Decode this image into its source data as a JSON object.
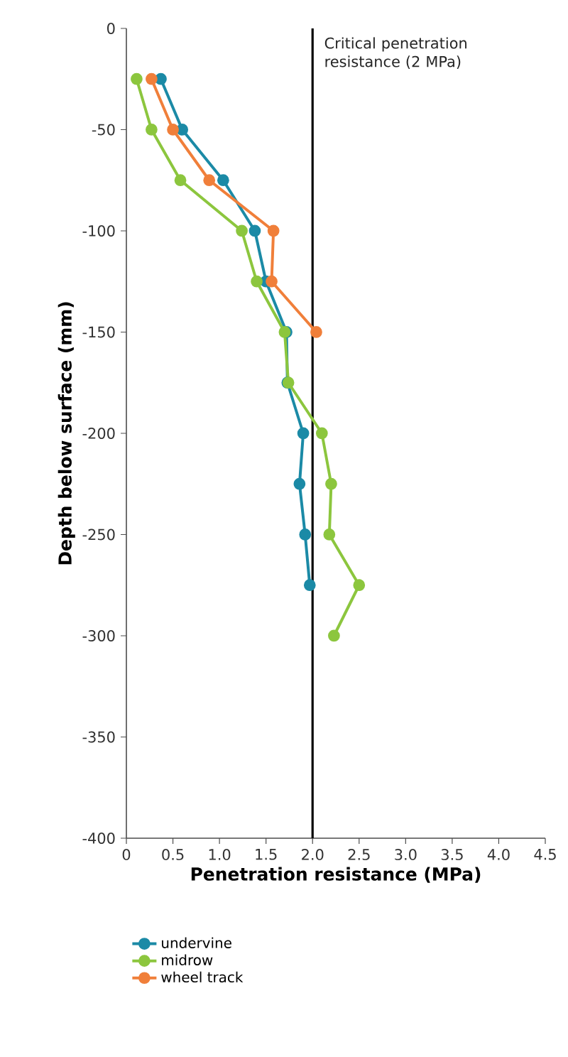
{
  "chart_data": {
    "type": "line",
    "xlabel": "Penetration resistance (MPa)",
    "ylabel": "Depth below surface (mm)",
    "xlim": [
      0,
      4.5
    ],
    "xticks": [
      0,
      {
        "value": 0.5,
        "label": "0.5"
      },
      {
        "value": 1,
        "label": "1.0"
      },
      {
        "value": 1.5,
        "label": "1.5"
      },
      {
        "value": 2,
        "label": "2.0"
      },
      {
        "value": 2.5,
        "label": "2.5"
      },
      {
        "value": 3,
        "label": "3.0"
      },
      {
        "value": 3.5,
        "label": "3.5"
      },
      {
        "value": 4,
        "label": "4.0"
      },
      {
        "value": 4.5,
        "label": "4.5"
      }
    ],
    "ylim": [
      -400,
      0
    ],
    "yticks": [
      -400,
      -350,
      -300,
      -250,
      -200,
      -150,
      -100,
      -50,
      0
    ],
    "marker": "circle",
    "line_style": "solid",
    "legend": "bottom left",
    "ref_lines": [
      {
        "axis": "x",
        "value": 2,
        "label": "Critical penetration resistance (2 MPa)",
        "color": "#000000"
      }
    ],
    "series": [
      {
        "name": "undervine",
        "color": "#1b8aa6",
        "x": [
          0.37,
          0.6,
          1.04,
          1.38,
          1.5,
          1.72,
          1.73,
          1.9,
          1.86,
          1.92,
          1.97
        ],
        "values": [
          -25,
          -50,
          -75,
          -100,
          -125,
          -150,
          -175,
          -200,
          -225,
          -250,
          -275
        ]
      },
      {
        "name": "midrow",
        "color": "#8cc63e",
        "x": [
          0.11,
          0.27,
          0.58,
          1.24,
          1.4,
          1.7,
          1.74,
          2.1,
          2.2,
          2.18,
          2.5,
          2.23
        ],
        "values": [
          -25,
          -50,
          -75,
          -100,
          -125,
          -150,
          -175,
          -200,
          -225,
          -250,
          -275,
          -300
        ]
      },
      {
        "name": "wheel track",
        "color": "#f07f3a",
        "x": [
          0.27,
          0.5,
          0.89,
          1.58,
          1.56,
          2.04
        ],
        "values": [
          -25,
          -50,
          -75,
          -100,
          -125,
          -150
        ]
      }
    ]
  }
}
